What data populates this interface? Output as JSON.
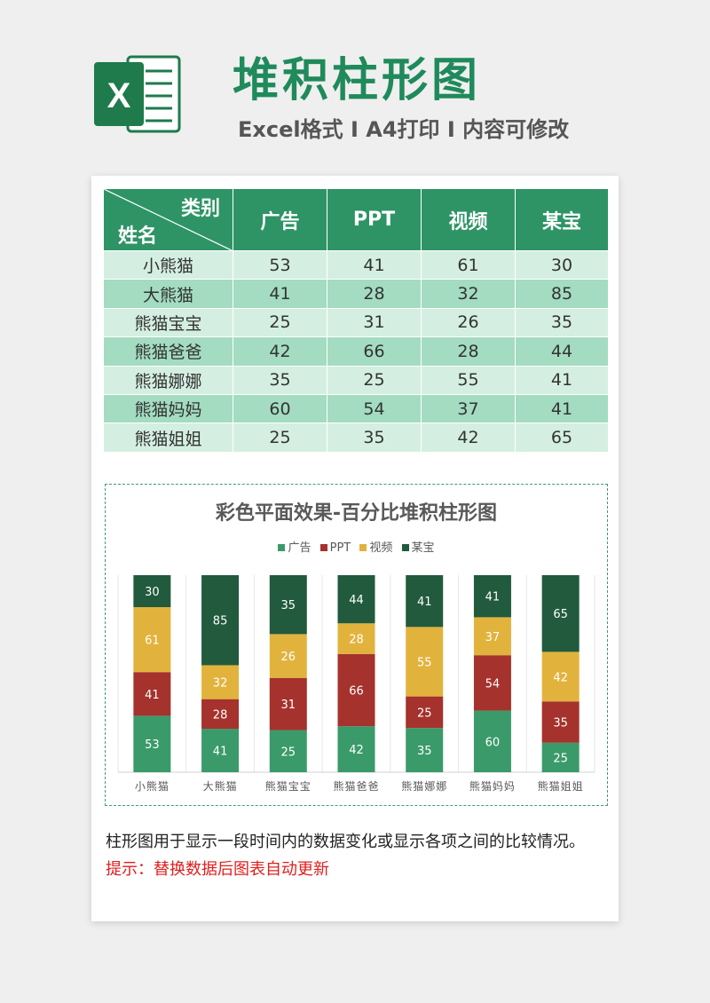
{
  "header": {
    "logo_letter": "X",
    "title": "堆积柱形图",
    "subtitle": "Excel格式 I A4打印 I 内容可修改"
  },
  "colors": {
    "brand": "#1f8a5b",
    "header_cell": "#2e9466",
    "row_light": "#d4efe2",
    "row_dark": "#a3dcc1",
    "series": [
      "#3a9a6a",
      "#a5322c",
      "#e2b33c",
      "#215a3c"
    ],
    "tip": "#e21d1d"
  },
  "table": {
    "corner_top": "类别",
    "corner_bottom": "姓名",
    "columns": [
      "广告",
      "PPT",
      "视频",
      "某宝"
    ],
    "rows": [
      {
        "name": "小熊猫",
        "values": [
          "53",
          "41",
          "61",
          "30"
        ]
      },
      {
        "name": "大熊猫",
        "values": [
          "41",
          "28",
          "32",
          "85"
        ]
      },
      {
        "name": "熊猫宝宝",
        "values": [
          "25",
          "31",
          "26",
          "35"
        ]
      },
      {
        "name": "熊猫爸爸",
        "values": [
          "42",
          "66",
          "28",
          "44"
        ]
      },
      {
        "name": "熊猫娜娜",
        "values": [
          "35",
          "25",
          "55",
          "41"
        ]
      },
      {
        "name": "熊猫妈妈",
        "values": [
          "60",
          "54",
          "37",
          "41"
        ]
      },
      {
        "name": "熊猫姐姐",
        "values": [
          "25",
          "35",
          "42",
          "65"
        ]
      }
    ]
  },
  "chart_data": {
    "type": "bar",
    "stacking": "percent",
    "title": "彩色平面效果-百分比堆积柱形图",
    "legend_position": "top",
    "categories": [
      "小熊猫",
      "大熊猫",
      "熊猫宝宝",
      "熊猫爸爸",
      "熊猫娜娜",
      "熊猫妈妈",
      "熊猫姐姐"
    ],
    "series": [
      {
        "name": "广告",
        "values": [
          53,
          41,
          25,
          42,
          35,
          60,
          25
        ]
      },
      {
        "name": "PPT",
        "values": [
          41,
          28,
          31,
          66,
          25,
          54,
          35
        ]
      },
      {
        "name": "视频",
        "values": [
          61,
          32,
          26,
          28,
          55,
          37,
          42
        ]
      },
      {
        "name": "某宝",
        "values": [
          30,
          85,
          35,
          44,
          41,
          41,
          65
        ]
      }
    ],
    "ylim": [
      0,
      100
    ],
    "grid": true
  },
  "footer": {
    "description": "柱形图用于显示一段时间内的数据变化或显示各项之间的比较情况。",
    "tip": "提示：替换数据后图表自动更新"
  }
}
